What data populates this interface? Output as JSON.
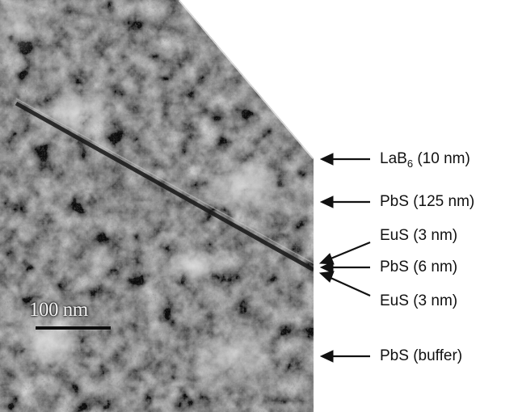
{
  "scale_bar": {
    "label": "100 nm"
  },
  "layers": [
    {
      "name": "LaB",
      "sub": "6",
      "thickness": " (10 nm)"
    },
    {
      "name": "PbS",
      "sub": "",
      "thickness": " (125 nm)"
    },
    {
      "name": "EuS",
      "sub": "",
      "thickness": " (3 nm)"
    },
    {
      "name": "PbS",
      "sub": "",
      "thickness": " (6 nm)"
    },
    {
      "name": "EuS",
      "sub": "",
      "thickness": " (3 nm)"
    },
    {
      "name": "PbS",
      "sub": "",
      "thickness": " (buffer)"
    }
  ],
  "colors": {
    "label_text": "#111111",
    "arrow": "#111111",
    "background": "#ffffff"
  }
}
